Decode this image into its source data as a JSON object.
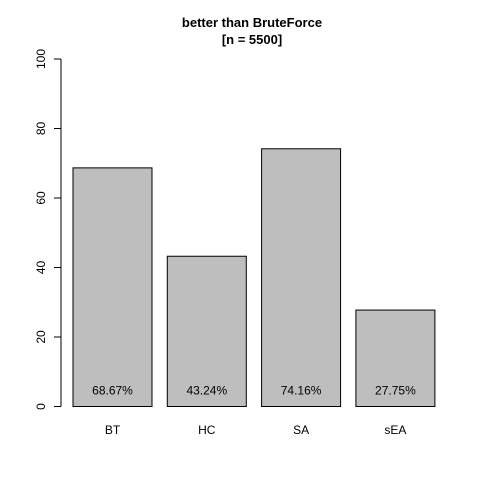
{
  "chart_data": {
    "type": "bar",
    "title": "better than BruteForce",
    "subtitle": "[n = 5500]",
    "categories": [
      "BT",
      "HC",
      "SA",
      "sEA"
    ],
    "values": [
      68.67,
      43.24,
      74.16,
      27.75
    ],
    "bar_labels": [
      "68.67%",
      "43.24%",
      "74.16%",
      "27.75%"
    ],
    "ylim": [
      0,
      100
    ],
    "yticks": [
      0,
      20,
      40,
      60,
      80,
      100
    ],
    "ytick_labels": [
      "0",
      "20",
      "40",
      "60",
      "80",
      "100"
    ],
    "bar_color": "#bebebe",
    "bar_border_color": "#000000",
    "grid": false,
    "legend": "none"
  }
}
